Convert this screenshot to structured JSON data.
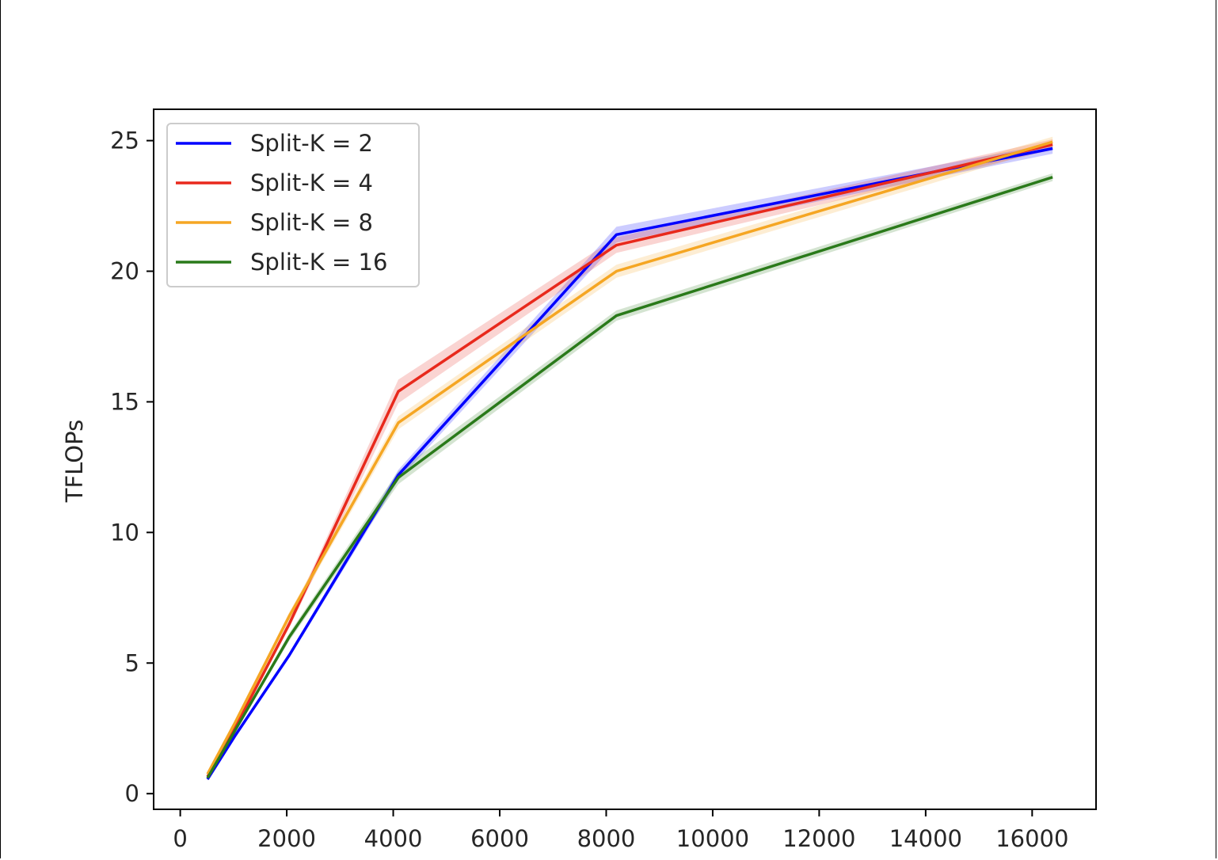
{
  "chart_data": {
    "type": "line",
    "title": "",
    "xlabel": "",
    "ylabel": "TFLOPs",
    "xlim": [
      -500,
      17200
    ],
    "ylim": [
      -0.6,
      26.2
    ],
    "xticks": [
      0,
      2000,
      4000,
      6000,
      8000,
      10000,
      12000,
      14000,
      16000
    ],
    "yticks": [
      0,
      5,
      10,
      15,
      20,
      25
    ],
    "grid": false,
    "legend_position": "upper left",
    "series": [
      {
        "name": "Split-K = 2",
        "color": "#0000ff",
        "x": [
          512,
          1024,
          2048,
          4096,
          8192,
          16384
        ],
        "y": [
          0.55,
          2.2,
          5.3,
          12.2,
          21.4,
          24.7
        ],
        "band": [
          0.05,
          0.05,
          0.1,
          0.2,
          0.3,
          0.2
        ]
      },
      {
        "name": "Split-K = 4",
        "color": "#e8291c",
        "x": [
          512,
          1024,
          2048,
          4096,
          8192,
          16384
        ],
        "y": [
          0.65,
          2.5,
          6.5,
          15.4,
          21.0,
          24.85
        ],
        "band": [
          0.05,
          0.05,
          0.15,
          0.45,
          0.3,
          0.2
        ]
      },
      {
        "name": "Split-K = 8",
        "color": "#f5a623",
        "x": [
          512,
          1024,
          2048,
          4096,
          8192,
          16384
        ],
        "y": [
          0.75,
          2.7,
          6.8,
          14.2,
          20.0,
          24.95
        ],
        "band": [
          0.05,
          0.05,
          0.15,
          0.25,
          0.25,
          0.2
        ]
      },
      {
        "name": "Split-K = 16",
        "color": "#2a7a1a",
        "x": [
          512,
          1024,
          2048,
          4096,
          8192,
          16384
        ],
        "y": [
          0.6,
          2.4,
          6.0,
          12.1,
          18.3,
          23.6
        ],
        "band": [
          0.05,
          0.05,
          0.15,
          0.25,
          0.2,
          0.15
        ]
      }
    ]
  }
}
